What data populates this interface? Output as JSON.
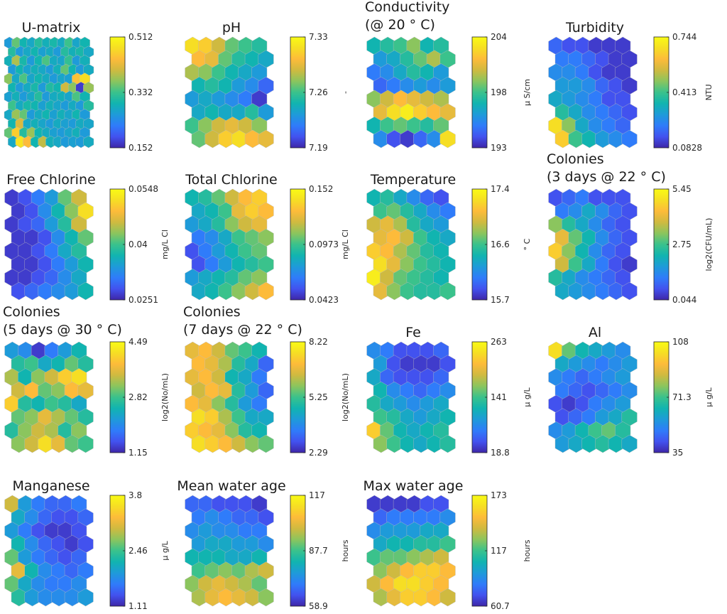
{
  "colormap": [
    "#3e26a8",
    "#4252ef",
    "#2f7cfa",
    "#1e9bd9",
    "#11b4b0",
    "#3ac28c",
    "#8bc55e",
    "#cfba40",
    "#fdbb3a",
    "#f6de24",
    "#f9fb15"
  ],
  "hex_edge_color": "#bcbcbc",
  "chart_data": [
    {
      "type": "heatmap",
      "id": "umatrix",
      "title": [
        "U-matrix"
      ],
      "unit": "",
      "cbar_ticks": [
        "0.512",
        "0.332",
        "0.152"
      ],
      "grid": [
        [
          0.3,
          0.55,
          0.4,
          0.35,
          0.45,
          0.38,
          0.42,
          0.36,
          0.5,
          0.34,
          0.4
        ],
        [
          0.45,
          0.3,
          0.35,
          0.4,
          0.32,
          0.36,
          0.3,
          0.45,
          0.38,
          0.42,
          0.35
        ],
        [
          0.38,
          0.65,
          0.42,
          0.3,
          0.4,
          0.52,
          0.36,
          0.34,
          0.48,
          0.3,
          0.38
        ],
        [
          0.3,
          0.4,
          0.33,
          0.38,
          0.35,
          0.3,
          0.38,
          0.55,
          0.4,
          0.3,
          0.36
        ],
        [
          0.6,
          0.35,
          0.52,
          0.34,
          0.4,
          0.36,
          0.3,
          0.34,
          0.32,
          0.82,
          0.9
        ],
        [
          0.4,
          0.3,
          0.36,
          0.42,
          0.3,
          0.44,
          0.4,
          0.7,
          0.6,
          0.05,
          0.62
        ],
        [
          0.32,
          0.38,
          0.3,
          0.35,
          0.45,
          0.3,
          0.36,
          0.38,
          0.34,
          0.52,
          0.4
        ],
        [
          0.5,
          0.36,
          0.42,
          0.4,
          0.32,
          0.38,
          0.34,
          0.3,
          0.36,
          0.3,
          0.45
        ],
        [
          0.35,
          0.62,
          0.55,
          0.3,
          0.36,
          0.4,
          0.32,
          0.38,
          0.34,
          0.4,
          0.3
        ],
        [
          0.4,
          0.72,
          0.35,
          0.38,
          0.34,
          0.3,
          0.36,
          0.32,
          0.3,
          0.36,
          0.34
        ],
        [
          0.55,
          0.85,
          0.45,
          0.62,
          0.4,
          0.36,
          0.32,
          0.3,
          0.34,
          0.38,
          0.3
        ],
        [
          0.35,
          0.92,
          0.8,
          0.4,
          0.68,
          0.38,
          0.35,
          0.3,
          0.32,
          0.3,
          0.36
        ]
      ]
    },
    {
      "type": "heatmap",
      "id": "ph",
      "title": [
        "pH"
      ],
      "unit": "-",
      "cbar_ticks": [
        "7.33",
        "7.26",
        "7.19"
      ],
      "grid": [
        [
          0.9,
          0.85,
          0.7,
          0.55,
          0.5,
          0.45
        ],
        [
          0.8,
          0.75,
          0.55,
          0.45,
          0.4,
          0.35
        ],
        [
          0.65,
          0.6,
          0.5,
          0.4,
          0.35,
          0.3
        ],
        [
          0.4,
          0.45,
          0.4,
          0.3,
          0.25,
          0.15
        ],
        [
          0.3,
          0.35,
          0.3,
          0.25,
          0.2,
          0.05
        ],
        [
          0.35,
          0.4,
          0.35,
          0.35,
          0.45,
          0.3
        ],
        [
          0.5,
          0.6,
          0.7,
          0.75,
          0.7,
          0.6
        ],
        [
          0.55,
          0.7,
          0.85,
          0.9,
          0.8,
          0.75
        ]
      ]
    },
    {
      "type": "heatmap",
      "id": "conductivity",
      "title": [
        "Conductivity",
        "(@ 20 ° C)"
      ],
      "unit": "μ S/cm",
      "cbar_ticks": [
        "204",
        "198",
        "193"
      ],
      "grid": [
        [
          0.4,
          0.45,
          0.5,
          0.6,
          0.4,
          0.45
        ],
        [
          0.3,
          0.35,
          0.45,
          0.55,
          0.65,
          0.5
        ],
        [
          0.2,
          0.25,
          0.35,
          0.45,
          0.4,
          0.3
        ],
        [
          0.15,
          0.2,
          0.25,
          0.3,
          0.25,
          0.3
        ],
        [
          0.6,
          0.7,
          0.8,
          0.75,
          0.7,
          0.65
        ],
        [
          0.75,
          0.9,
          0.95,
          0.85,
          0.8,
          0.75
        ],
        [
          0.4,
          0.5,
          0.55,
          0.5,
          0.45,
          0.55
        ],
        [
          0.25,
          0.1,
          0.05,
          0.15,
          0.25,
          0.9
        ]
      ]
    },
    {
      "type": "heatmap",
      "id": "turbidity",
      "title": [
        "Turbidity"
      ],
      "unit": "NTU",
      "cbar_ticks": [
        "0.744",
        "0.413",
        "0.0828"
      ],
      "grid": [
        [
          0.15,
          0.1,
          0.1,
          0.05,
          0.05,
          0.05
        ],
        [
          0.2,
          0.2,
          0.15,
          0.1,
          0.05,
          0.05
        ],
        [
          0.25,
          0.25,
          0.2,
          0.1,
          0.05,
          0.05
        ],
        [
          0.3,
          0.3,
          0.25,
          0.15,
          0.1,
          0.05
        ],
        [
          0.35,
          0.3,
          0.25,
          0.2,
          0.1,
          0.1
        ],
        [
          0.45,
          0.35,
          0.25,
          0.2,
          0.15,
          0.1
        ],
        [
          0.9,
          0.6,
          0.35,
          0.25,
          0.2,
          0.15
        ],
        [
          0.85,
          0.5,
          0.4,
          0.3,
          0.25,
          0.2
        ]
      ]
    },
    {
      "type": "heatmap",
      "id": "free_chlorine",
      "title": [
        "Free Chlorine"
      ],
      "unit": "mg/L Cl",
      "cbar_ticks": [
        "0.0548",
        "0.04",
        "0.0251"
      ],
      "grid": [
        [
          0.05,
          0.1,
          0.2,
          0.3,
          0.55,
          0.7
        ],
        [
          0.05,
          0.1,
          0.25,
          0.4,
          0.6,
          0.9
        ],
        [
          0.05,
          0.1,
          0.15,
          0.3,
          0.45,
          0.7
        ],
        [
          0.05,
          0.05,
          0.1,
          0.25,
          0.4,
          0.55
        ],
        [
          0.05,
          0.05,
          0.1,
          0.2,
          0.35,
          0.45
        ],
        [
          0.05,
          0.05,
          0.1,
          0.2,
          0.3,
          0.4
        ],
        [
          0.05,
          0.05,
          0.1,
          0.15,
          0.25,
          0.35
        ],
        [
          0.1,
          0.15,
          0.2,
          0.25,
          0.3,
          0.4
        ]
      ]
    },
    {
      "type": "heatmap",
      "id": "total_chlorine",
      "title": [
        "Total Chlorine"
      ],
      "unit": "mg/L Cl",
      "cbar_ticks": [
        "0.152",
        "0.0973",
        "0.0423"
      ],
      "grid": [
        [
          0.4,
          0.45,
          0.55,
          0.7,
          0.8,
          0.85
        ],
        [
          0.35,
          0.4,
          0.5,
          0.75,
          0.85,
          0.8
        ],
        [
          0.3,
          0.35,
          0.45,
          0.6,
          0.7,
          0.75
        ],
        [
          0.2,
          0.25,
          0.35,
          0.5,
          0.55,
          0.6
        ],
        [
          0.1,
          0.2,
          0.3,
          0.4,
          0.5,
          0.55
        ],
        [
          0.1,
          0.2,
          0.3,
          0.4,
          0.45,
          0.5
        ],
        [
          0.3,
          0.35,
          0.4,
          0.45,
          0.55,
          0.6
        ],
        [
          0.35,
          0.4,
          0.5,
          0.6,
          0.7,
          0.8
        ]
      ]
    },
    {
      "type": "heatmap",
      "id": "temperature",
      "title": [
        "Temperature"
      ],
      "unit": "° C",
      "cbar_ticks": [
        "17.4",
        "16.6",
        "15.7"
      ],
      "grid": [
        [
          0.4,
          0.45,
          0.35,
          0.25,
          0.15,
          0.1
        ],
        [
          0.5,
          0.55,
          0.45,
          0.35,
          0.25,
          0.2
        ],
        [
          0.7,
          0.75,
          0.65,
          0.45,
          0.35,
          0.3
        ],
        [
          0.75,
          0.8,
          0.7,
          0.5,
          0.4,
          0.35
        ],
        [
          0.85,
          0.8,
          0.65,
          0.55,
          0.45,
          0.4
        ],
        [
          0.9,
          0.75,
          0.6,
          0.5,
          0.45,
          0.4
        ],
        [
          0.95,
          0.7,
          0.55,
          0.5,
          0.45,
          0.4
        ],
        [
          0.75,
          0.6,
          0.5,
          0.45,
          0.45,
          0.5
        ]
      ]
    },
    {
      "type": "heatmap",
      "id": "colonies_3d",
      "title": [
        "Colonies",
        "(3 days @ 22 ° C)"
      ],
      "unit": "log2(CFU/mL)",
      "cbar_ticks": [
        "5.45",
        "2.75",
        "0.044"
      ],
      "grid": [
        [
          0.1,
          0.15,
          0.2,
          0.1,
          0.1,
          0.1
        ],
        [
          0.2,
          0.25,
          0.35,
          0.25,
          0.15,
          0.1
        ],
        [
          0.6,
          0.45,
          0.35,
          0.25,
          0.15,
          0.1
        ],
        [
          0.75,
          0.55,
          0.4,
          0.25,
          0.15,
          0.1
        ],
        [
          0.85,
          0.6,
          0.4,
          0.25,
          0.15,
          0.1
        ],
        [
          0.7,
          0.5,
          0.35,
          0.2,
          0.1,
          0.05
        ],
        [
          0.45,
          0.35,
          0.25,
          0.2,
          0.15,
          0.1
        ],
        [
          0.35,
          0.3,
          0.25,
          0.2,
          0.15,
          0.1
        ]
      ]
    },
    {
      "type": "heatmap",
      "id": "colonies_5d",
      "title": [
        "Colonies",
        "(5 days @ 30 ° C)"
      ],
      "unit": "log2(No/mL)",
      "cbar_ticks": [
        "4.49",
        "2.82",
        "1.15"
      ],
      "grid": [
        [
          0.3,
          0.25,
          0.05,
          0.2,
          0.3,
          0.4
        ],
        [
          0.45,
          0.5,
          0.35,
          0.4,
          0.55,
          0.45
        ],
        [
          0.65,
          0.4,
          0.6,
          0.7,
          0.85,
          0.9
        ],
        [
          0.7,
          0.8,
          0.55,
          0.6,
          0.8,
          0.75
        ],
        [
          0.85,
          0.45,
          0.4,
          0.5,
          0.45,
          0.35
        ],
        [
          0.55,
          0.6,
          0.75,
          0.65,
          0.55,
          0.45
        ],
        [
          0.45,
          0.6,
          0.7,
          0.65,
          0.45,
          0.6
        ],
        [
          0.6,
          0.7,
          0.9,
          0.75,
          0.55,
          0.5
        ]
      ]
    },
    {
      "type": "heatmap",
      "id": "colonies_7d",
      "title": [
        "Colonies",
        "(7 days @ 22 ° C)"
      ],
      "unit": "log2(No/mL)",
      "cbar_ticks": [
        "8.22",
        "5.25",
        "2.29"
      ],
      "grid": [
        [
          0.75,
          0.8,
          0.7,
          0.55,
          0.5,
          0.4
        ],
        [
          0.8,
          0.75,
          0.65,
          0.45,
          0.35,
          0.15
        ],
        [
          0.75,
          0.8,
          0.7,
          0.4,
          0.35,
          0.2
        ],
        [
          0.7,
          0.8,
          0.75,
          0.45,
          0.3,
          0.15
        ],
        [
          0.8,
          0.75,
          0.6,
          0.45,
          0.3,
          0.2
        ],
        [
          0.9,
          0.85,
          0.65,
          0.5,
          0.35,
          0.35
        ],
        [
          0.85,
          0.8,
          0.75,
          0.6,
          0.45,
          0.4
        ],
        [
          0.9,
          0.85,
          0.8,
          0.7,
          0.6,
          0.55
        ]
      ]
    },
    {
      "type": "heatmap",
      "id": "fe",
      "title": [
        "Fe"
      ],
      "unit": "μ g/L",
      "cbar_ticks": [
        "263",
        "141",
        "18.8"
      ],
      "grid": [
        [
          0.25,
          0.2,
          0.1,
          0.1,
          0.1,
          0.15
        ],
        [
          0.3,
          0.1,
          0.05,
          0.05,
          0.05,
          0.1
        ],
        [
          0.35,
          0.15,
          0.1,
          0.1,
          0.1,
          0.15
        ],
        [
          0.4,
          0.25,
          0.2,
          0.15,
          0.2,
          0.25
        ],
        [
          0.45,
          0.35,
          0.3,
          0.25,
          0.3,
          0.35
        ],
        [
          0.5,
          0.45,
          0.35,
          0.3,
          0.35,
          0.4
        ],
        [
          0.85,
          0.55,
          0.4,
          0.35,
          0.4,
          0.45
        ],
        [
          0.6,
          0.5,
          0.4,
          0.35,
          0.4,
          0.45
        ]
      ]
    },
    {
      "type": "heatmap",
      "id": "al",
      "title": [
        "Al"
      ],
      "unit": "μ g/L",
      "cbar_ticks": [
        "108",
        "71.3",
        "35"
      ],
      "grid": [
        [
          0.9,
          0.55,
          0.4,
          0.35,
          0.3,
          0.25
        ],
        [
          0.35,
          0.3,
          0.25,
          0.2,
          0.25,
          0.3
        ],
        [
          0.25,
          0.2,
          0.15,
          0.2,
          0.25,
          0.3
        ],
        [
          0.2,
          0.15,
          0.1,
          0.15,
          0.2,
          0.25
        ],
        [
          0.1,
          0.05,
          0.1,
          0.2,
          0.25,
          0.3
        ],
        [
          0.1,
          0.15,
          0.2,
          0.3,
          0.35,
          0.45
        ],
        [
          0.25,
          0.3,
          0.4,
          0.5,
          0.55,
          0.45
        ],
        [
          0.3,
          0.35,
          0.4,
          0.45,
          0.4,
          0.35
        ]
      ]
    },
    {
      "type": "heatmap",
      "id": "manganese",
      "title": [
        "Manganese"
      ],
      "unit": "μ g/L",
      "cbar_ticks": [
        "3.8",
        "2.46",
        "1.11"
      ],
      "grid": [
        [
          0.7,
          0.3,
          0.2,
          0.15,
          0.15,
          0.2
        ],
        [
          0.35,
          0.25,
          0.15,
          0.1,
          0.1,
          0.15
        ],
        [
          0.3,
          0.2,
          0.1,
          0.05,
          0.05,
          0.1
        ],
        [
          0.4,
          0.25,
          0.15,
          0.1,
          0.05,
          0.1
        ],
        [
          0.55,
          0.3,
          0.2,
          0.15,
          0.1,
          0.15
        ],
        [
          0.75,
          0.4,
          0.25,
          0.2,
          0.15,
          0.2
        ],
        [
          0.55,
          0.35,
          0.25,
          0.2,
          0.2,
          0.25
        ],
        [
          0.45,
          0.3,
          0.25,
          0.25,
          0.25,
          0.3
        ]
      ]
    },
    {
      "type": "heatmap",
      "id": "mean_water_age",
      "title": [
        "Mean water age"
      ],
      "unit": "hours",
      "cbar_ticks": [
        "117",
        "87.7",
        "58.9"
      ],
      "grid": [
        [
          0.15,
          0.15,
          0.1,
          0.1,
          0.1,
          0.05
        ],
        [
          0.2,
          0.25,
          0.2,
          0.15,
          0.15,
          0.1
        ],
        [
          0.25,
          0.3,
          0.25,
          0.25,
          0.2,
          0.2
        ],
        [
          0.3,
          0.35,
          0.35,
          0.3,
          0.3,
          0.25
        ],
        [
          0.4,
          0.4,
          0.4,
          0.35,
          0.35,
          0.4
        ],
        [
          0.5,
          0.55,
          0.6,
          0.55,
          0.65,
          0.7
        ],
        [
          0.6,
          0.7,
          0.75,
          0.7,
          0.65,
          0.55
        ],
        [
          0.65,
          0.75,
          0.8,
          0.75,
          0.7,
          0.6
        ]
      ]
    },
    {
      "type": "heatmap",
      "id": "max_water_age",
      "title": [
        "Max water age"
      ],
      "unit": "hours",
      "cbar_ticks": [
        "173",
        "117",
        "60.7"
      ],
      "grid": [
        [
          0.05,
          0.05,
          0.05,
          0.05,
          0.1,
          0.1
        ],
        [
          0.15,
          0.2,
          0.2,
          0.2,
          0.2,
          0.25
        ],
        [
          0.25,
          0.3,
          0.3,
          0.3,
          0.35,
          0.35
        ],
        [
          0.35,
          0.4,
          0.4,
          0.45,
          0.45,
          0.5
        ],
        [
          0.5,
          0.55,
          0.55,
          0.6,
          0.65,
          0.7
        ],
        [
          0.6,
          0.7,
          0.8,
          0.85,
          0.85,
          0.8
        ],
        [
          0.7,
          0.8,
          0.9,
          0.9,
          0.85,
          0.8
        ],
        [
          0.65,
          0.75,
          0.85,
          0.85,
          0.8,
          0.7
        ]
      ]
    }
  ]
}
